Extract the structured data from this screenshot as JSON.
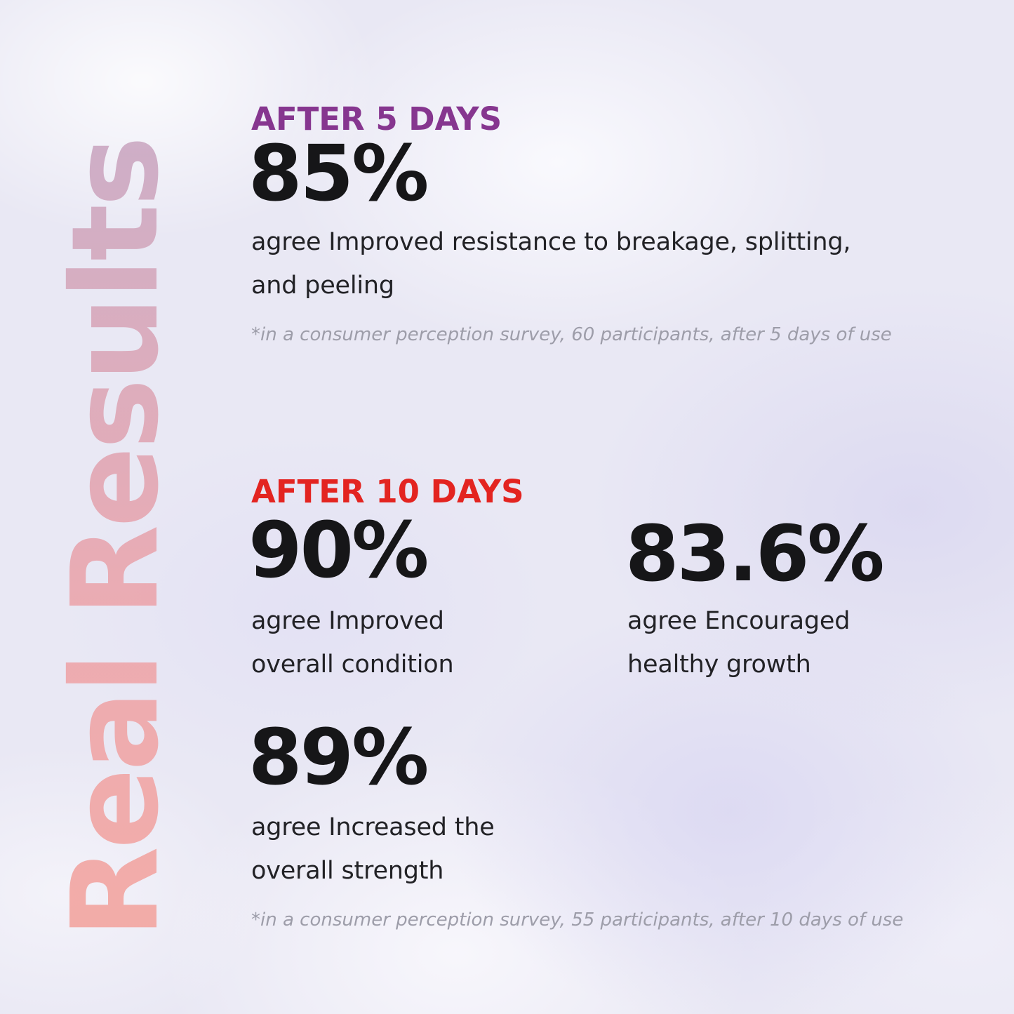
{
  "vertical_title": {
    "text": "Real Results"
  },
  "sections": [
    {
      "id": "after-5-days",
      "heading": {
        "label": "AFTER 5 DAYS",
        "color": "#86368f"
      },
      "stats": [
        {
          "value": "85%",
          "description": "agree Improved resistance to breakage, splitting, and peeling"
        }
      ],
      "footnote": "*in a consumer perception survey, 60 participants, after 5 days of use"
    },
    {
      "id": "after-10-days",
      "heading": {
        "label": "AFTER 10 DAYS",
        "color": "#e32420"
      },
      "stats": [
        {
          "value": "90%",
          "description": "agree Improved overall condition"
        },
        {
          "value": "83.6%",
          "description": "agree Encouraged healthy growth"
        },
        {
          "value": "89%",
          "description": "agree Increased the overall strength"
        }
      ],
      "footnote": "*in a consumer perception survey, 55 participants, after 10 days of use"
    }
  ],
  "colors": {
    "background_base": "#e9e8f4",
    "background_cloud": "#d7d4f0",
    "title_gradient_top": "#c5aac7",
    "title_gradient_bottom": "#f3a7a1",
    "stat_text": "#161618",
    "body_text": "#222226",
    "footnote_text": "#9d9da9"
  }
}
